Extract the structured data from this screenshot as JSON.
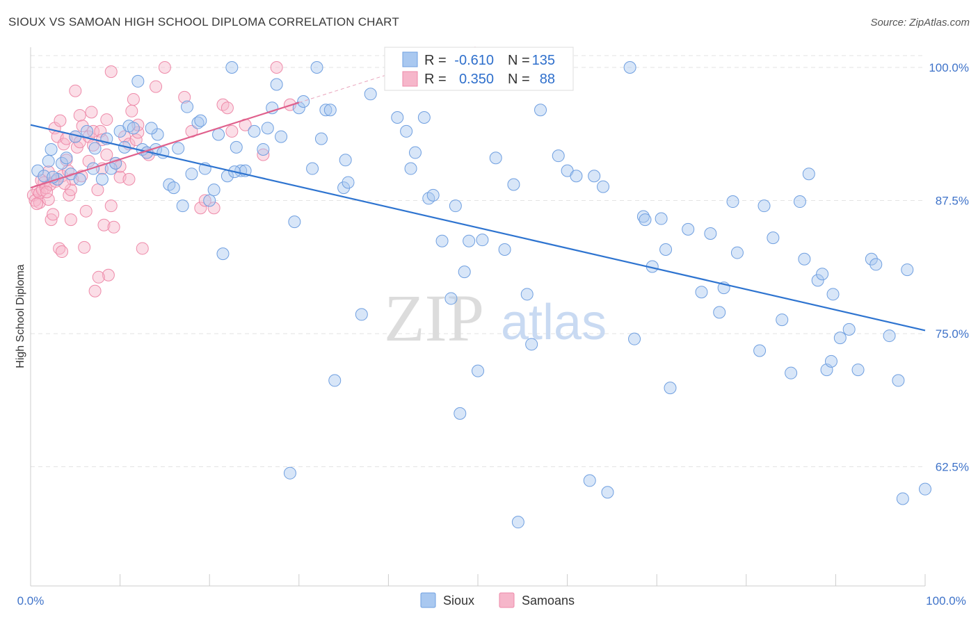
{
  "title": "SIOUX VS SAMOAN HIGH SCHOOL DIPLOMA CORRELATION CHART",
  "source": "Source: ZipAtlas.com",
  "watermark": {
    "zip": "ZIP",
    "atlas": "atlas"
  },
  "colors": {
    "sioux_fill": "#a9c8f0",
    "sioux_stroke": "#6f9fe0",
    "sioux_line": "#2e74d0",
    "samoans_fill": "#f6b6ca",
    "samoans_stroke": "#ee8aa9",
    "samoans_line": "#e0608c",
    "tick_label": "#3f73c9",
    "grid": "#e3e3e3"
  },
  "legend": {
    "sioux": {
      "r_label": "R =",
      "r_value": "-0.610",
      "n_label": "N =",
      "n_value": "135"
    },
    "samoans": {
      "r_label": "R =",
      "r_value": "0.350",
      "n_label": "N =",
      "n_value": "88"
    }
  },
  "chart_data": {
    "type": "scatter",
    "title": "SIOUX VS SAMOAN HIGH SCHOOL DIPLOMA CORRELATION CHART",
    "xlabel": "",
    "ylabel": "High School Diploma",
    "xlim": [
      0,
      100
    ],
    "ylim": [
      52,
      102
    ],
    "x_tick_labels": [
      "0.0%",
      "100.0%"
    ],
    "y_ticks": [
      100,
      87.5,
      75,
      62.5
    ],
    "y_tick_labels": [
      "100.0%",
      "87.5%",
      "75.0%",
      "62.5%"
    ],
    "grid": true,
    "legend_position": "bottom-center",
    "series": [
      {
        "name": "Sioux",
        "r": -0.61,
        "n": 135,
        "trend": {
          "x": [
            0,
            100
          ],
          "y": [
            94.6,
            75.3
          ]
        },
        "points": [
          [
            0.8,
            90.3
          ],
          [
            1.5,
            89.8
          ],
          [
            2,
            91.2
          ],
          [
            2.3,
            92.3
          ],
          [
            3,
            89.5
          ],
          [
            3.5,
            91
          ],
          [
            4,
            91.5
          ],
          [
            4.5,
            90
          ],
          [
            5,
            93.5
          ],
          [
            5.5,
            89.5
          ],
          [
            6.3,
            94
          ],
          [
            7,
            90.5
          ],
          [
            7.2,
            92.4
          ],
          [
            8,
            89.5
          ],
          [
            8.5,
            93.3
          ],
          [
            9,
            90.5
          ],
          [
            10,
            94
          ],
          [
            10.5,
            92.5
          ],
          [
            11,
            94.5
          ],
          [
            11.5,
            94.3
          ],
          [
            12,
            98.7
          ],
          [
            12.5,
            92.3
          ],
          [
            13,
            92
          ],
          [
            14,
            92.3
          ],
          [
            14.2,
            93.7
          ],
          [
            14.8,
            92
          ],
          [
            15.5,
            89
          ],
          [
            16,
            88.7
          ],
          [
            16.5,
            92.4
          ],
          [
            17,
            87
          ],
          [
            17.5,
            96.3
          ],
          [
            18,
            90
          ],
          [
            18.7,
            94.8
          ],
          [
            19,
            95
          ],
          [
            19.5,
            90.5
          ],
          [
            20,
            87.5
          ],
          [
            20.5,
            88.5
          ],
          [
            21,
            93.7
          ],
          [
            21.5,
            82.5
          ],
          [
            22,
            89.8
          ],
          [
            22.5,
            100
          ],
          [
            23,
            92.5
          ],
          [
            23.5,
            90.3
          ],
          [
            24,
            90.3
          ],
          [
            25,
            94
          ],
          [
            26,
            92.3
          ],
          [
            26.5,
            94.3
          ],
          [
            27,
            96.2
          ],
          [
            27.5,
            98.4
          ],
          [
            28,
            93.5
          ],
          [
            29.5,
            85.5
          ],
          [
            30,
            96.2
          ],
          [
            30.5,
            96.8
          ],
          [
            31.5,
            90.5
          ],
          [
            32,
            100
          ],
          [
            32.5,
            93.3
          ],
          [
            33,
            96
          ],
          [
            33.5,
            96
          ],
          [
            35,
            88.7
          ],
          [
            35.5,
            89.2
          ],
          [
            35.2,
            91.3
          ],
          [
            37,
            76.8
          ],
          [
            34,
            70.6
          ],
          [
            38,
            97.5
          ],
          [
            41,
            95.3
          ],
          [
            42,
            94
          ],
          [
            42.5,
            90.5
          ],
          [
            43,
            92
          ],
          [
            44,
            95.3
          ],
          [
            44.5,
            87.7
          ],
          [
            45,
            88
          ],
          [
            46,
            83.7
          ],
          [
            47,
            78.3
          ],
          [
            47.5,
            87
          ],
          [
            48,
            67.5
          ],
          [
            48.5,
            80.8
          ],
          [
            49,
            83.7
          ],
          [
            50,
            71.5
          ],
          [
            50.5,
            83.8
          ],
          [
            52,
            91.5
          ],
          [
            53,
            82.9
          ],
          [
            54,
            89
          ],
          [
            55.5,
            78.7
          ],
          [
            56,
            74
          ],
          [
            57,
            96
          ],
          [
            59,
            91.7
          ],
          [
            60,
            90.3
          ],
          [
            61,
            89.8
          ],
          [
            63,
            89.8
          ],
          [
            64,
            88.8
          ],
          [
            64.5,
            60.1
          ],
          [
            62.5,
            61.2
          ],
          [
            67,
            100
          ],
          [
            67.5,
            74.5
          ],
          [
            68.5,
            86
          ],
          [
            68.7,
            85.7
          ],
          [
            69.5,
            81.3
          ],
          [
            70.5,
            85.8
          ],
          [
            71,
            82.9
          ],
          [
            71.5,
            69.9
          ],
          [
            73.5,
            84.8
          ],
          [
            75,
            78.9
          ],
          [
            76,
            84.4
          ],
          [
            77,
            77
          ],
          [
            77.5,
            79.3
          ],
          [
            78.5,
            87.4
          ],
          [
            79,
            82.6
          ],
          [
            81.5,
            73.4
          ],
          [
            82,
            87
          ],
          [
            83,
            84
          ],
          [
            84,
            76.3
          ],
          [
            85,
            71.3
          ],
          [
            86,
            87.4
          ],
          [
            86.5,
            82
          ],
          [
            87,
            90
          ],
          [
            88,
            80
          ],
          [
            88.5,
            80.6
          ],
          [
            89,
            71.6
          ],
          [
            89.5,
            72.4
          ],
          [
            89.7,
            78.7
          ],
          [
            90.5,
            74.6
          ],
          [
            91.5,
            75.4
          ],
          [
            92.5,
            71.6
          ],
          [
            94,
            82
          ],
          [
            94.5,
            81.5
          ],
          [
            96,
            74.8
          ],
          [
            97,
            70.6
          ],
          [
            98,
            81
          ],
          [
            97.5,
            59.5
          ],
          [
            100,
            60.4
          ],
          [
            29,
            61.9
          ],
          [
            54.5,
            57.3
          ],
          [
            2.5,
            89.7
          ],
          [
            9.5,
            91
          ],
          [
            13.5,
            94.3
          ],
          [
            22.8,
            90.2
          ]
        ]
      },
      {
        "name": "Samoans",
        "r": 0.35,
        "n": 88,
        "trend": {
          "x": [
            0,
            30
          ],
          "y": [
            88.7,
            96.7
          ]
        },
        "trend_extension": {
          "x": [
            30,
            50
          ],
          "y": [
            96.7,
            102
          ]
        },
        "points": [
          [
            0.3,
            88
          ],
          [
            0.5,
            87.5
          ],
          [
            0.8,
            88.4
          ],
          [
            1,
            87.3
          ],
          [
            1,
            88.2
          ],
          [
            1.2,
            89.4
          ],
          [
            1.3,
            88.5
          ],
          [
            1.5,
            89.2
          ],
          [
            1.7,
            88.7
          ],
          [
            2,
            87.6
          ],
          [
            2,
            90.2
          ],
          [
            2.2,
            89
          ],
          [
            2.3,
            85.7
          ],
          [
            2.5,
            86.2
          ],
          [
            2.7,
            94.3
          ],
          [
            2.8,
            89.3
          ],
          [
            3,
            93.5
          ],
          [
            3,
            89.5
          ],
          [
            3.2,
            83
          ],
          [
            3.3,
            95
          ],
          [
            3.5,
            82.7
          ],
          [
            3.5,
            89.8
          ],
          [
            3.7,
            92.8
          ],
          [
            4,
            93.3
          ],
          [
            4,
            91.3
          ],
          [
            4.2,
            90.3
          ],
          [
            4.3,
            88
          ],
          [
            4.5,
            85.7
          ],
          [
            4.5,
            88.5
          ],
          [
            4.7,
            89.5
          ],
          [
            5,
            97.8
          ],
          [
            5,
            93.5
          ],
          [
            5.2,
            92.5
          ],
          [
            5.5,
            93
          ],
          [
            5.5,
            95.5
          ],
          [
            5.7,
            89.8
          ],
          [
            5.8,
            94.5
          ],
          [
            6,
            83.1
          ],
          [
            6.2,
            86.5
          ],
          [
            6.5,
            93.5
          ],
          [
            6.5,
            91.2
          ],
          [
            6.8,
            95.8
          ],
          [
            7,
            94
          ],
          [
            7,
            92.7
          ],
          [
            7.5,
            88.5
          ],
          [
            7.8,
            94
          ],
          [
            8,
            93.2
          ],
          [
            8,
            90.5
          ],
          [
            8.2,
            85.2
          ],
          [
            8.5,
            95.1
          ],
          [
            8.5,
            91.8
          ],
          [
            8.7,
            80.5
          ],
          [
            9,
            99.6
          ],
          [
            9,
            87
          ],
          [
            9.3,
            85
          ],
          [
            9.5,
            91
          ],
          [
            10,
            89.7
          ],
          [
            10,
            90.7
          ],
          [
            10.5,
            93.5
          ],
          [
            11,
            89.5
          ],
          [
            11,
            92.8
          ],
          [
            11.3,
            95.9
          ],
          [
            11.5,
            97
          ],
          [
            11.8,
            93.2
          ],
          [
            12,
            93.9
          ],
          [
            12,
            94.6
          ],
          [
            12.5,
            83
          ],
          [
            13,
            92
          ],
          [
            13.2,
            91.8
          ],
          [
            14,
            98.2
          ],
          [
            15,
            100
          ],
          [
            17.2,
            97.2
          ],
          [
            18,
            94
          ],
          [
            19,
            86.8
          ],
          [
            19.5,
            87.5
          ],
          [
            20.5,
            86.8
          ],
          [
            21.5,
            96.5
          ],
          [
            22,
            96.2
          ],
          [
            22.5,
            94
          ],
          [
            24,
            94.6
          ],
          [
            26,
            91.8
          ],
          [
            27.5,
            100
          ],
          [
            29,
            96.5
          ],
          [
            7.2,
            79
          ],
          [
            7.6,
            80.3
          ],
          [
            1.8,
            88.3
          ],
          [
            0.7,
            87.2
          ],
          [
            3.8,
            89.1
          ]
        ]
      }
    ]
  },
  "bottom_legend": [
    "Sioux",
    "Samoans"
  ]
}
